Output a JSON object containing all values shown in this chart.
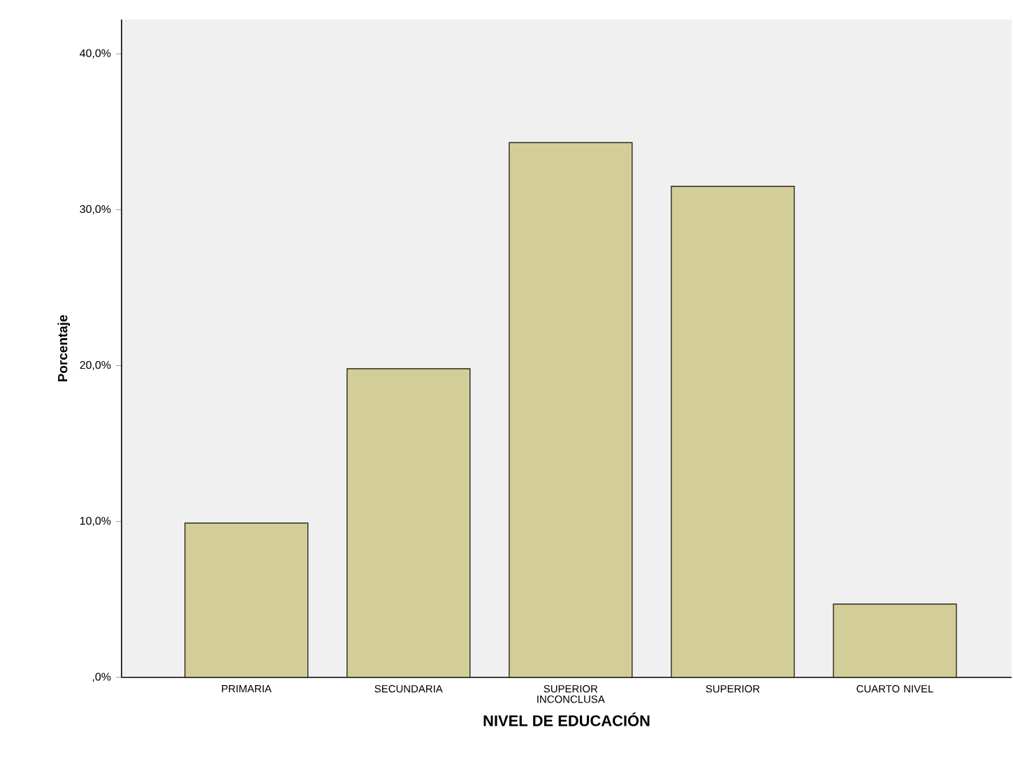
{
  "chart_data": {
    "type": "bar",
    "xlabel": "NIVEL DE EDUCACIÓN",
    "ylabel": "Porcentaje",
    "categories": [
      "PRIMARIA",
      "SECUNDARIA",
      "SUPERIOR INCONCLUSA",
      "SUPERIOR",
      "CUARTO NIVEL"
    ],
    "values": [
      9.9,
      19.8,
      34.3,
      31.5,
      4.7
    ],
    "color": "#d3ce97",
    "ylim": [
      0,
      42.2
    ],
    "yticks": [
      {
        "value": 0,
        "label": ",0%"
      },
      {
        "value": 10,
        "label": "10,0%"
      },
      {
        "value": 20,
        "label": "20,0%"
      },
      {
        "value": 30,
        "label": "30,0%"
      },
      {
        "value": 40,
        "label": "40,0%"
      }
    ],
    "grid": false
  }
}
